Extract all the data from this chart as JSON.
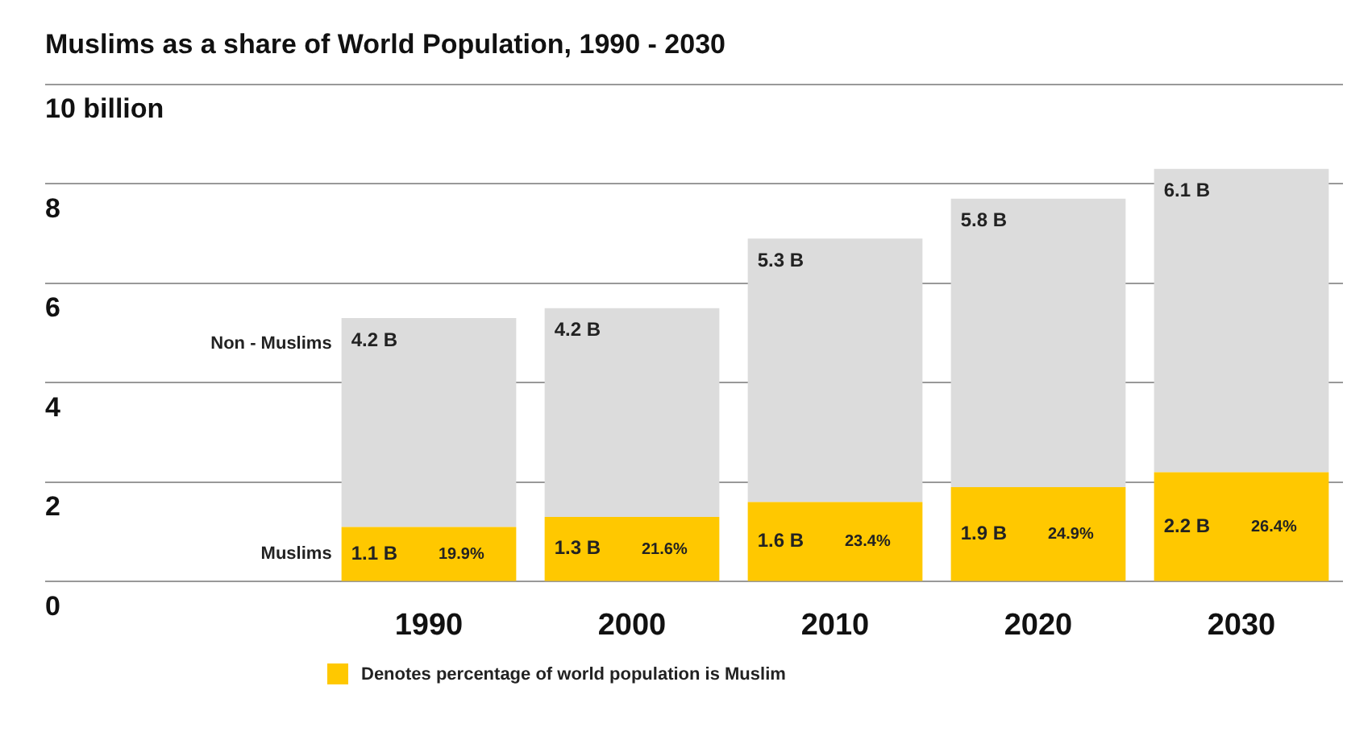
{
  "chart_data": {
    "type": "bar",
    "title": "Muslims as a share of World Population, 1990 - 2030",
    "categories": [
      "1990",
      "2000",
      "2010",
      "2020",
      "2030"
    ],
    "stacked": true,
    "series": [
      {
        "name": "Muslims",
        "color": "#ffc800",
        "values": [
          1.1,
          1.3,
          1.6,
          1.9,
          2.2
        ],
        "value_labels": [
          "1.1 B",
          "1.3 B",
          "1.6 B",
          "1.9 B",
          "2.2 B"
        ]
      },
      {
        "name": "Non - Muslims",
        "color": "#dcdcdc",
        "values": [
          4.2,
          4.2,
          5.3,
          5.8,
          6.1
        ],
        "value_labels": [
          "4.2 B",
          "4.2 B",
          "5.3 B",
          "5.8 B",
          "6.1 B"
        ]
      }
    ],
    "ylim": [
      0,
      10
    ],
    "yticks": [
      0,
      2,
      4,
      6,
      8,
      {
        "value": 10,
        "label": "10 billion"
      }
    ],
    "grid": "y",
    "legend": false,
    "annotations": [
      {
        "text": "19.9%",
        "x": "1990",
        "y": 1.1
      },
      {
        "text": "21.6%",
        "x": "2000",
        "y": 1.3
      },
      {
        "text": "23.4%",
        "x": "2010",
        "y": 1.6
      },
      {
        "text": "24.9%",
        "x": "2020",
        "y": 1.9
      },
      {
        "text": "26.4%",
        "x": "2030",
        "y": 2.2
      },
      "Denotes percentage of world population is Muslim"
    ]
  }
}
